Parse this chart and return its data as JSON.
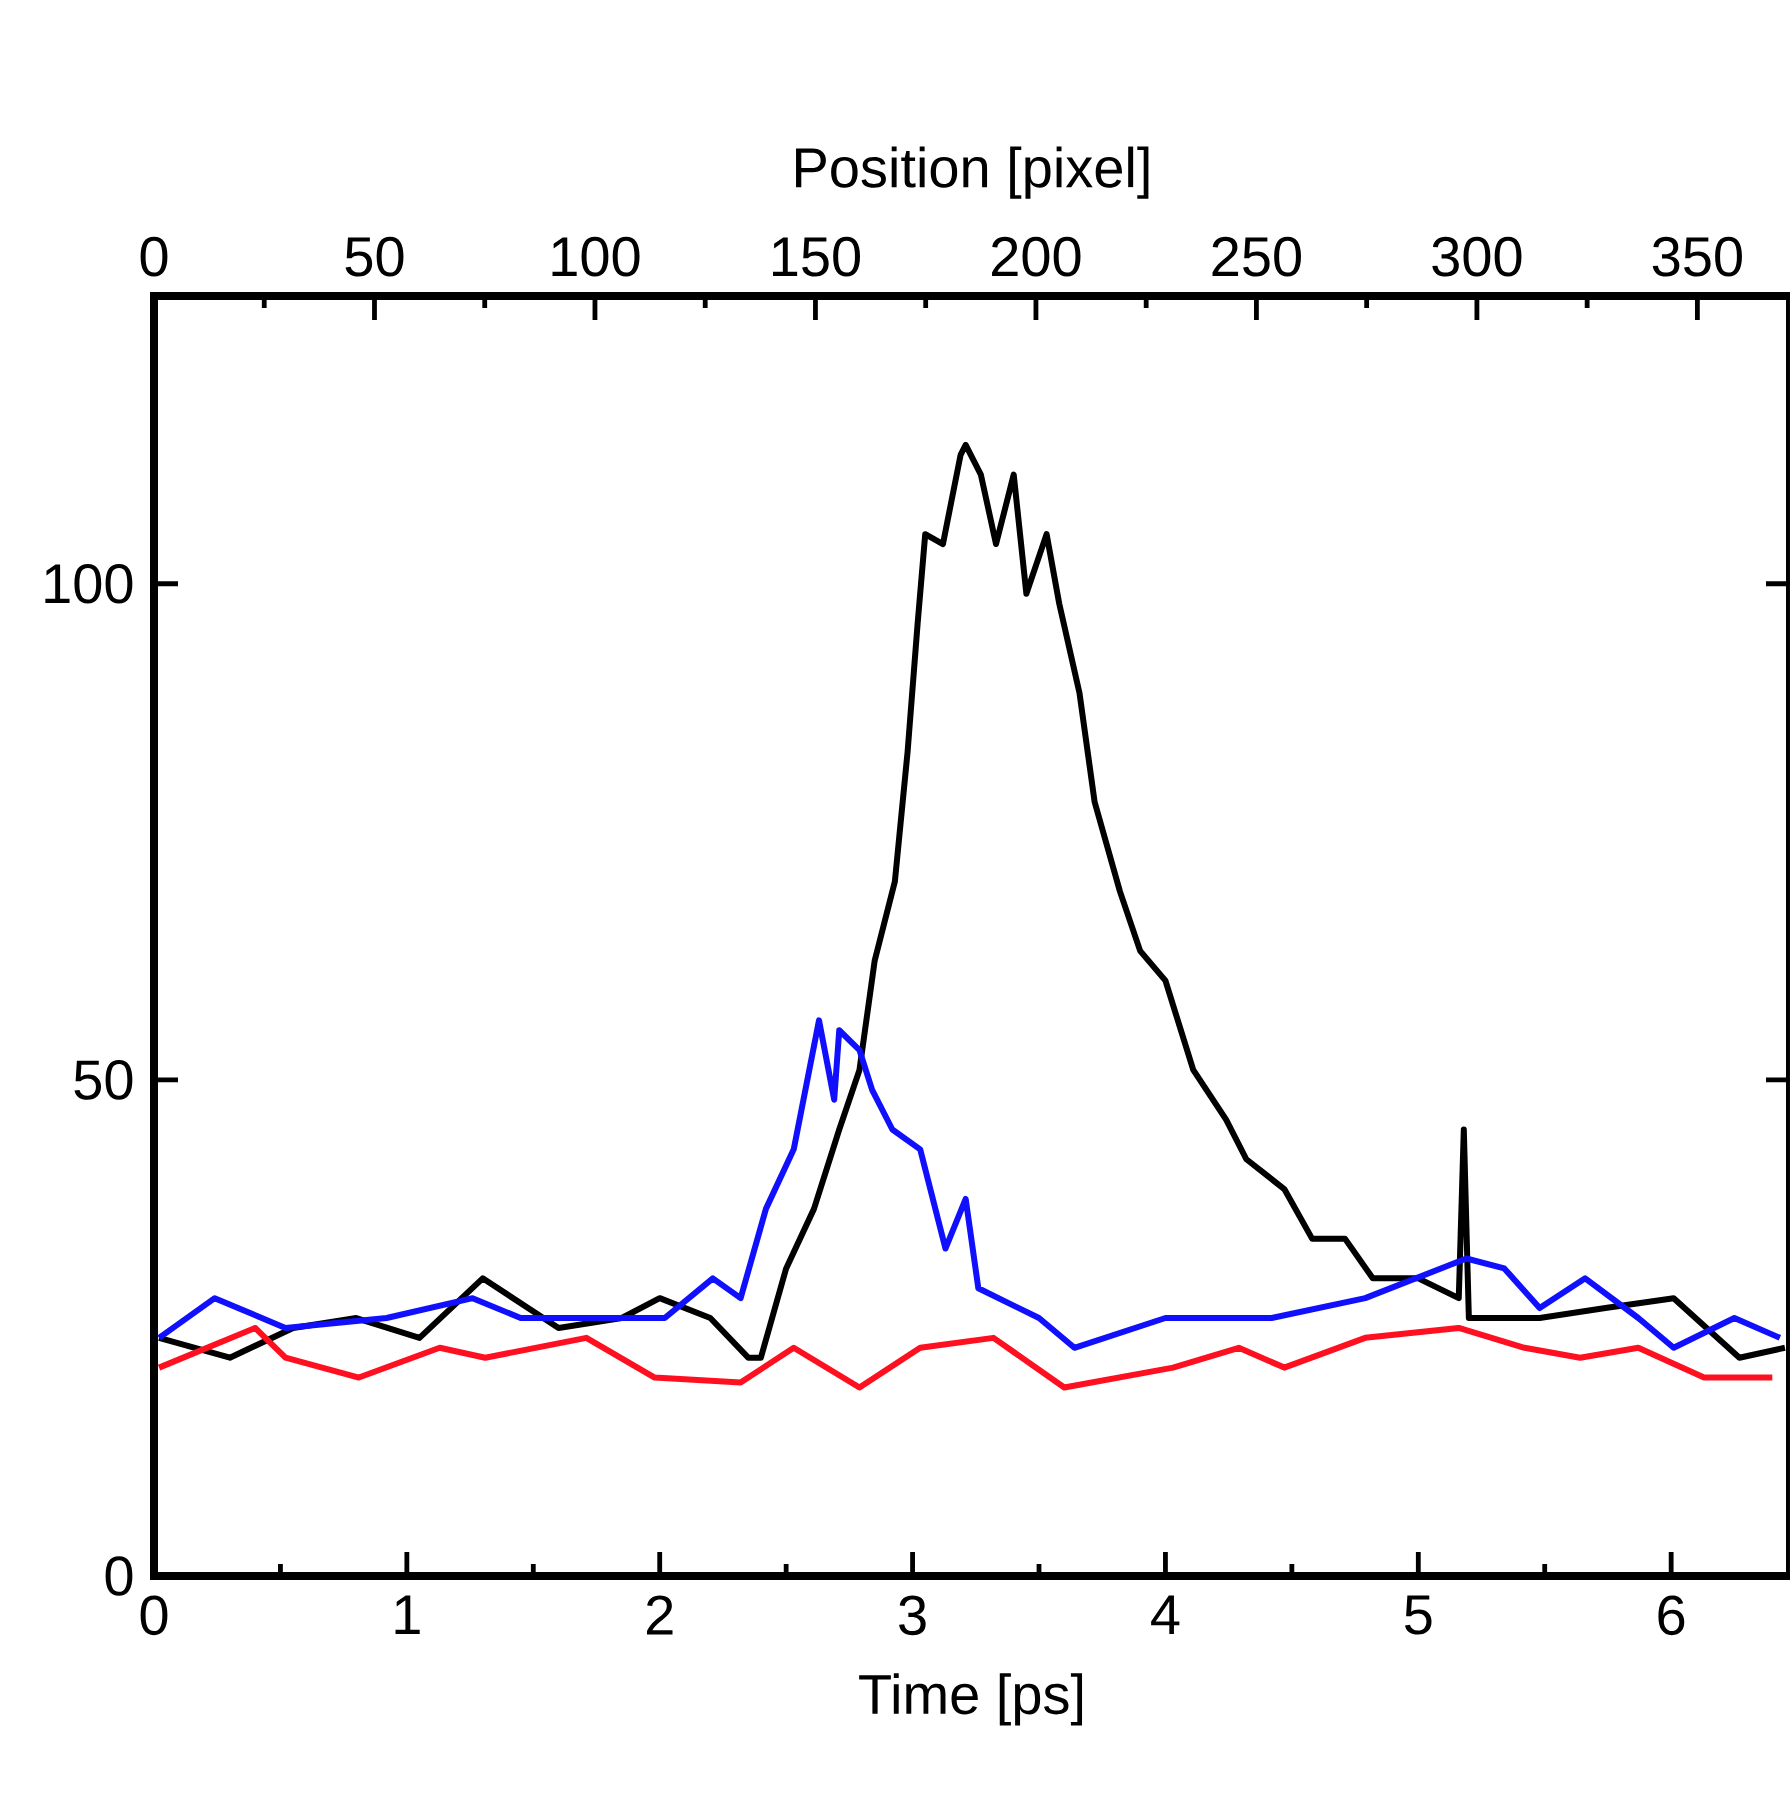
{
  "chart_data": {
    "type": "line",
    "xlabel": "Time [ps]",
    "x2label": "Position [pixel]",
    "xlim": [
      0,
      6.47
    ],
    "xticks": [
      0,
      1,
      2,
      3,
      4,
      5,
      6
    ],
    "x2lim": [
      0,
      371
    ],
    "x2ticks": [
      0,
      50,
      100,
      150,
      200,
      250,
      300,
      350
    ],
    "ylim": [
      0,
      129
    ],
    "yticks": [
      0,
      50,
      100
    ],
    "series": [
      {
        "color": "#000000",
        "x": [
          0.02,
          0.3,
          0.55,
          0.8,
          1.05,
          1.3,
          1.6,
          1.85,
          2.0,
          2.2,
          2.35,
          2.4,
          2.5,
          2.61,
          2.71,
          2.79,
          2.85,
          2.93,
          2.98,
          3.02,
          3.05,
          3.12,
          3.19,
          3.21,
          3.27,
          3.33,
          3.4,
          3.45,
          3.53,
          3.58,
          3.66,
          3.72,
          3.82,
          3.9,
          4.0,
          4.11,
          4.24,
          4.32,
          4.47,
          4.58,
          4.71,
          4.82,
          5.0,
          5.16,
          5.18,
          5.2,
          5.48,
          5.74,
          6.01,
          6.27,
          6.45
        ],
        "values": [
          24,
          22,
          25,
          26,
          24,
          30,
          25,
          26,
          28,
          26,
          22,
          22,
          31,
          37,
          45,
          51,
          62,
          70,
          83,
          96,
          105,
          104,
          113,
          114,
          111,
          104,
          111,
          99,
          105,
          98,
          89,
          78,
          69,
          63,
          60,
          51,
          46,
          42,
          39,
          34,
          34,
          30,
          30,
          28,
          45,
          26,
          26,
          27,
          28,
          22,
          23
        ]
      },
      {
        "color": "#1010ff",
        "x": [
          0.02,
          0.24,
          0.52,
          0.92,
          1.26,
          1.45,
          1.71,
          2.02,
          2.21,
          2.32,
          2.42,
          2.53,
          2.63,
          2.69,
          2.71,
          2.79,
          2.84,
          2.92,
          3.03,
          3.13,
          3.21,
          3.26,
          3.5,
          3.64,
          4.0,
          4.42,
          4.79,
          5.19,
          5.34,
          5.48,
          5.66,
          5.87,
          6.01,
          6.25,
          6.43
        ],
        "values": [
          24,
          28,
          25,
          26,
          28,
          26,
          26,
          26,
          30,
          28,
          37,
          43,
          56,
          48,
          55,
          53,
          49,
          45,
          43,
          33,
          38,
          29,
          26,
          23,
          26,
          26,
          28,
          32,
          31,
          27,
          30,
          26,
          23,
          26,
          24
        ]
      },
      {
        "color": "#ff1020",
        "x": [
          0.02,
          0.4,
          0.52,
          0.81,
          1.13,
          1.31,
          1.71,
          1.98,
          2.32,
          2.53,
          2.79,
          3.03,
          3.32,
          3.6,
          4.03,
          4.29,
          4.47,
          4.79,
          5.16,
          5.42,
          5.64,
          5.87,
          6.13,
          6.4
        ],
        "values": [
          21,
          25,
          22,
          20,
          23,
          22,
          24,
          20,
          19.5,
          23,
          19,
          23,
          24,
          19,
          21,
          23,
          21,
          24,
          25,
          23,
          22,
          23,
          20,
          20
        ]
      }
    ]
  }
}
